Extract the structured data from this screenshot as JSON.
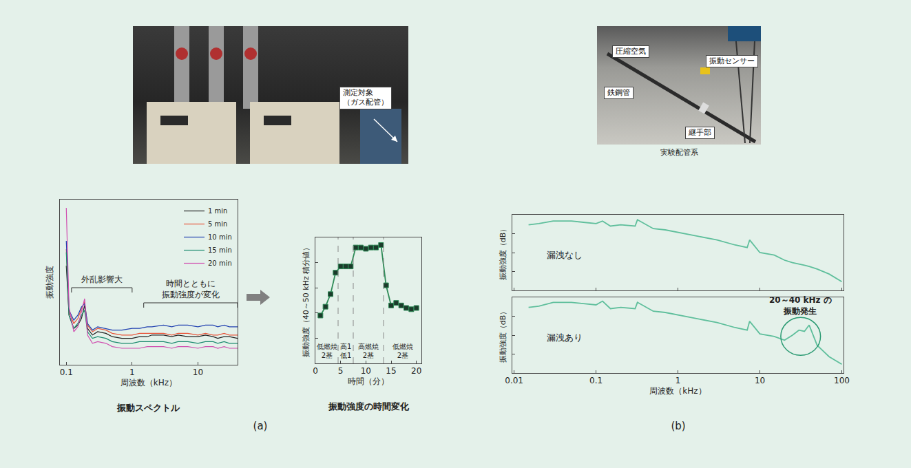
{
  "panel_letters": [
    "(a)",
    "(b)"
  ],
  "photos": [
    {
      "labels": [
        {
          "lines": [
            "測定対象",
            "（ガス配管）"
          ]
        }
      ]
    },
    {
      "labels": [
        {
          "lines": [
            "圧縮空気"
          ]
        },
        {
          "lines": [
            "振動センサー"
          ]
        },
        {
          "lines": [
            "鉄鋼管"
          ]
        },
        {
          "lines": [
            "継手部"
          ]
        }
      ],
      "caption": "実験配管系"
    }
  ],
  "chart_data": [
    {
      "type": "line",
      "title": "振動スペクトル",
      "x_label": "周波数（kHz）",
      "y_label": "振動強度",
      "log": "x",
      "grid": false,
      "legend": "top-right",
      "tick_labels": "x",
      "x": [
        0.1,
        0.11,
        0.13,
        0.15,
        0.17,
        0.19,
        0.21,
        0.25,
        0.3,
        0.4,
        0.5,
        0.7,
        1,
        1.3,
        1.7,
        2,
        3,
        4,
        5,
        7,
        10,
        13,
        17,
        20,
        25,
        30,
        40
      ],
      "series": [
        {
          "name": "1 min",
          "color": "#222222",
          "values": [
            60,
            30,
            22,
            24,
            28,
            36,
            22,
            18,
            20,
            19,
            17,
            16,
            16,
            17,
            17,
            18,
            18,
            17,
            18,
            17,
            17,
            18,
            17,
            16,
            17,
            17,
            16
          ]
        },
        {
          "name": "5 min",
          "color": "#e8553a",
          "values": [
            70,
            32,
            25,
            28,
            34,
            38,
            24,
            20,
            22,
            21,
            19,
            18,
            18,
            19,
            19,
            19,
            19,
            18,
            19,
            19,
            18,
            19,
            18,
            18,
            19,
            18,
            18
          ]
        },
        {
          "name": "10 min",
          "color": "#1f3fb0",
          "values": [
            75,
            33,
            27,
            30,
            35,
            37,
            25,
            21,
            23,
            22,
            21,
            21,
            22,
            22,
            23,
            23,
            24,
            23,
            24,
            24,
            23,
            24,
            24,
            23,
            24,
            23,
            23
          ]
        },
        {
          "name": "15 min",
          "color": "#1a8a6e",
          "values": [
            68,
            30,
            22,
            25,
            30,
            33,
            20,
            16,
            17,
            16,
            14,
            13,
            13,
            14,
            14,
            14,
            14,
            13,
            14,
            14,
            13,
            14,
            14,
            13,
            14,
            13,
            13
          ]
        },
        {
          "name": "20 min",
          "color": "#d04fb0",
          "values": [
            95,
            35,
            20,
            23,
            32,
            40,
            18,
            13,
            14,
            13,
            11,
            10,
            10,
            10,
            11,
            11,
            11,
            10,
            11,
            11,
            10,
            11,
            11,
            10,
            11,
            10,
            10
          ]
        }
      ],
      "xlim": [
        0.08,
        40
      ],
      "xticks": [
        0.1,
        1,
        10
      ],
      "ylim": [
        0,
        100
      ],
      "annotations": [
        {
          "text_lines": [
            "外乱影響大"
          ],
          "x_range": [
            0.12,
            1
          ]
        },
        {
          "text_lines": [
            "時間とともに",
            "振動強度が変化"
          ],
          "x_range": [
            1.5,
            40
          ]
        }
      ]
    },
    {
      "type": "line",
      "title": "振動強度の時間変化",
      "x_label": "時間（分）",
      "y_label": "振動強度（40～50 kHz 積分値）",
      "grid": false,
      "tick_labels": "x",
      "marker": "square",
      "color": "#2e8b57",
      "x": [
        1,
        2,
        3,
        4,
        5,
        6,
        7,
        8,
        9,
        10,
        11,
        12,
        13,
        14,
        15,
        16,
        17,
        18,
        19,
        20
      ],
      "values": [
        38,
        45,
        55,
        72,
        77,
        77,
        77,
        92,
        92,
        91,
        92,
        92,
        94,
        62,
        46,
        48,
        46,
        44,
        43,
        44
      ],
      "xlim": [
        0,
        21
      ],
      "xticks": [
        0,
        5,
        10,
        15,
        20
      ],
      "ylim": [
        0,
        100
      ],
      "yticks": [
        0,
        20,
        40,
        60,
        80,
        100
      ],
      "phase_boundaries": [
        4.5,
        7.5,
        13.5
      ],
      "phases": [
        {
          "label_lines": [
            "低燃焼",
            "2基"
          ]
        },
        {
          "label_lines": [
            "高1",
            "低1"
          ]
        },
        {
          "label_lines": [
            "高燃焼",
            "2基"
          ]
        },
        {
          "label_lines": [
            "低燃焼",
            "2基"
          ]
        }
      ]
    },
    {
      "type": "line",
      "label": "漏洩なし",
      "y_label": "振動強度（dB）",
      "log": "x",
      "grid": false,
      "tick_labels": false,
      "color": "#5fbf9c",
      "x": [
        0.015,
        0.02,
        0.03,
        0.05,
        0.07,
        0.1,
        0.12,
        0.15,
        0.2,
        0.3,
        0.32,
        0.5,
        0.7,
        1,
        1.5,
        2,
        3,
        5,
        7,
        7.5,
        10,
        15,
        20,
        25,
        30,
        35,
        40,
        50,
        70,
        100
      ],
      "values": [
        52,
        53,
        55,
        55,
        54,
        53,
        55,
        51,
        52,
        51,
        56,
        49,
        48,
        46,
        44,
        42,
        40,
        36,
        34,
        40,
        30,
        28,
        24,
        22,
        21,
        20,
        19,
        17,
        13,
        7
      ],
      "xlim": [
        0.0095,
        105
      ],
      "xticks": [
        0.01,
        0.1,
        1,
        10,
        100
      ],
      "ylim": [
        0,
        60
      ],
      "yticks": [
        0,
        15,
        30,
        45,
        60
      ]
    },
    {
      "type": "line",
      "label": "漏洩あり",
      "x_label": "周波数（kHz）",
      "y_label": "振動強度（dB）",
      "log": "x",
      "grid": false,
      "tick_labels": "x",
      "color": "#5fbf9c",
      "x": [
        0.015,
        0.02,
        0.03,
        0.05,
        0.07,
        0.1,
        0.12,
        0.15,
        0.2,
        0.3,
        0.32,
        0.5,
        0.7,
        1,
        1.5,
        2,
        3,
        5,
        7,
        7.5,
        10,
        15,
        20,
        25,
        30,
        35,
        40,
        50,
        70,
        100
      ],
      "values": [
        52,
        53,
        56,
        56,
        55,
        54,
        57,
        51,
        52,
        51,
        56,
        49,
        48,
        46,
        44,
        42,
        40,
        36,
        34,
        41,
        31,
        29,
        26,
        30,
        34,
        33,
        38,
        22,
        13,
        7
      ],
      "xlim": [
        0.0095,
        105
      ],
      "xticks": [
        0.01,
        0.1,
        1,
        10,
        100
      ],
      "ylim": [
        0,
        60
      ],
      "yticks": [
        0,
        15,
        30,
        45,
        60
      ],
      "highlight": {
        "x0": 18,
        "x1": 55,
        "y0": 14,
        "y1": 44,
        "text_lines": [
          "20～40 kHz の",
          "振動発生"
        ]
      }
    }
  ]
}
